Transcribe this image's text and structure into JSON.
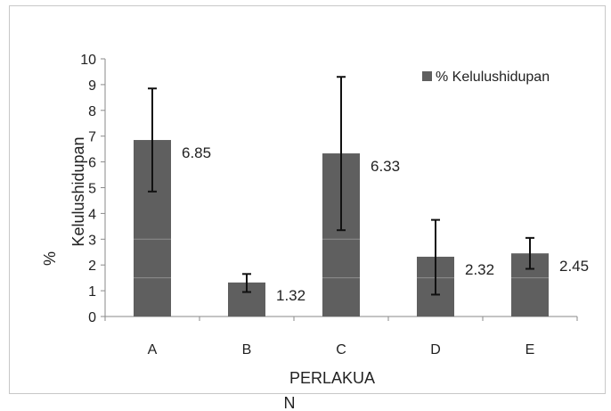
{
  "chart_data": {
    "type": "bar",
    "categories": [
      "A",
      "B",
      "C",
      "D",
      "E"
    ],
    "series": [
      {
        "name": "% Kelulushidupan",
        "values": [
          6.85,
          1.32,
          6.33,
          2.32,
          2.45
        ],
        "error": [
          [
            4.85,
            8.85
          ],
          [
            0.95,
            1.65
          ],
          [
            3.35,
            9.3
          ],
          [
            0.85,
            3.75
          ],
          [
            1.85,
            3.05
          ]
        ],
        "data_labels": [
          "6.85",
          "1.32",
          "6.33",
          "2.32",
          "2.45"
        ]
      }
    ],
    "ylim": [
      0,
      10
    ],
    "yticks": [
      "0",
      "1",
      "2",
      "3",
      "4",
      "5",
      "6",
      "7",
      "8",
      "9",
      "10"
    ],
    "ylabel_line1": "%",
    "ylabel_line2": "Kelulushidupan",
    "xlabel_line1": "PERLAKUA",
    "xlabel_line2": "N",
    "grid": false,
    "legend": "top-right",
    "bar_color": "#5f5f5f"
  }
}
